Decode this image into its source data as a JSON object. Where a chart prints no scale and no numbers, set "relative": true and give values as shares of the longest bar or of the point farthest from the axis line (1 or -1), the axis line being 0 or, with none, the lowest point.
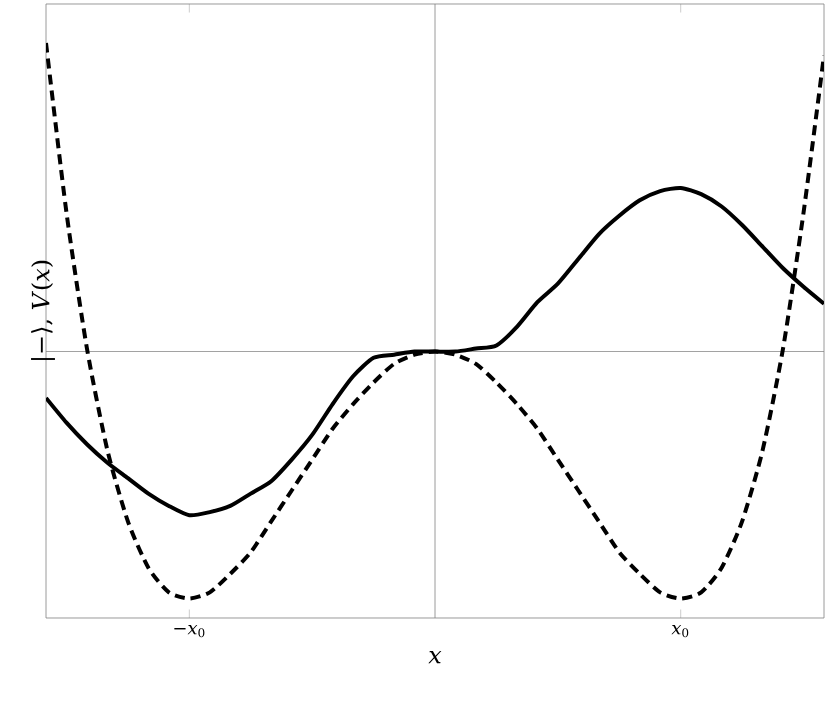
{
  "chart_data": {
    "type": "line",
    "relative": true,
    "xlabel": "x",
    "ylabel": "|−⟩, *V*(*x*)",
    "categories": [
      null,
      null,
      null,
      null,
      null,
      null,
      null,
      "−*x*$_{0}$",
      null,
      null,
      null,
      null,
      null,
      null,
      null,
      null,
      null,
      null,
      null,
      null,
      null,
      null,
      null,
      null,
      null,
      null,
      null,
      null,
      null,
      null,
      null,
      "*x*$_{0}$",
      null,
      null,
      null,
      null,
      null,
      null,
      null
    ],
    "ref_lines": [
      {
        "axis": "y",
        "value": 0,
        "color": "#808080"
      }
    ],
    "series": [
      {
        "color": "#000000",
        "line_style": "solid",
        "values": [
          -0.15,
          -0.23,
          -0.3,
          -0.36,
          -0.41,
          -0.46,
          -0.5,
          -0.53,
          -0.52,
          -0.5,
          -0.46,
          -0.42,
          -0.35,
          -0.27,
          -0.17,
          -0.08,
          -0.02,
          -0.01,
          0,
          0,
          0,
          0.01,
          0.02,
          0.08,
          0.16,
          0.22,
          0.3,
          0.38,
          0.44,
          0.49,
          0.52,
          0.53,
          0.51,
          0.47,
          0.41,
          0.34,
          0.27,
          0.21,
          0.155
        ]
      },
      {
        "color": "#000000",
        "line_style": "dashed",
        "values": [
          1.0,
          0.45,
          0.01,
          -0.32,
          -0.55,
          -0.7,
          -0.78,
          -0.8,
          -0.78,
          -0.72,
          -0.65,
          -0.55,
          -0.45,
          -0.35,
          -0.25,
          -0.17,
          -0.1,
          -0.04,
          -0.01,
          0,
          -0.01,
          -0.04,
          -0.1,
          -0.17,
          -0.25,
          -0.35,
          -0.45,
          -0.55,
          -0.65,
          -0.72,
          -0.78,
          -0.8,
          -0.78,
          -0.7,
          -0.55,
          -0.32,
          0.01,
          0.45,
          0.96
        ]
      }
    ]
  }
}
